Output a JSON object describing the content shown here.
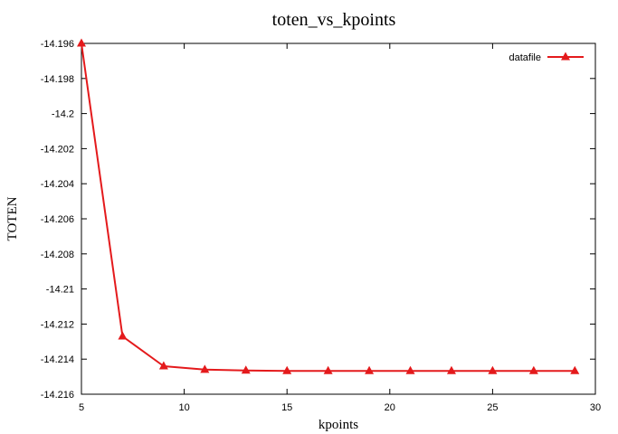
{
  "chart_data": {
    "type": "line",
    "title": "toten_vs_kpoints",
    "xlabel": "kpoints",
    "ylabel": "TOTEN",
    "xlim": [
      5,
      30
    ],
    "ylim": [
      -14.216,
      -14.196
    ],
    "xticks": [
      "5",
      "10",
      "15",
      "20",
      "25",
      "30"
    ],
    "yticks": [
      "-14.196",
      "-14.198",
      "-14.2",
      "-14.202",
      "-14.204",
      "-14.206",
      "-14.208",
      "-14.21",
      "-14.212",
      "-14.214",
      "-14.216"
    ],
    "grid": false,
    "legend_position": "top-right",
    "series": [
      {
        "name": "datafile",
        "color": "#e41a1c",
        "marker": "triangle",
        "x": [
          5,
          7,
          9,
          11,
          13,
          15,
          17,
          19,
          21,
          23,
          25,
          27,
          29
        ],
        "y": [
          -14.196,
          -14.2127,
          -14.2144,
          -14.2146,
          -14.21465,
          -14.21467,
          -14.21467,
          -14.21467,
          -14.21467,
          -14.21467,
          -14.21467,
          -14.21467,
          -14.21467
        ]
      }
    ]
  }
}
